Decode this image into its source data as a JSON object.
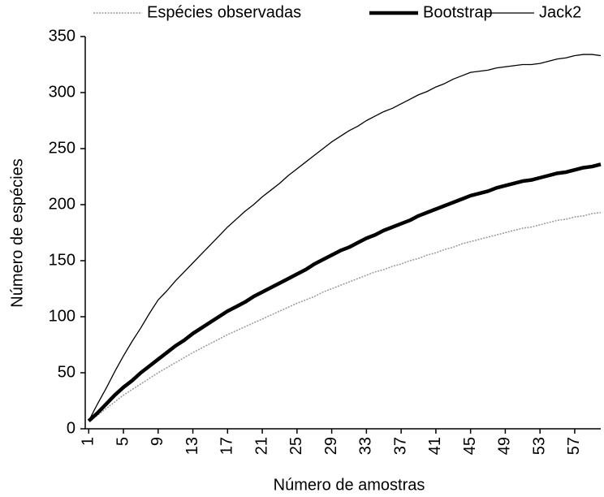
{
  "chart_data": {
    "type": "line",
    "x_label": "Número de amostras",
    "y_label": "Número de espécies",
    "x": [
      1,
      2,
      3,
      4,
      5,
      6,
      7,
      8,
      9,
      10,
      11,
      12,
      13,
      14,
      15,
      16,
      17,
      18,
      19,
      20,
      21,
      22,
      23,
      24,
      25,
      26,
      27,
      28,
      29,
      30,
      31,
      32,
      33,
      34,
      35,
      36,
      37,
      38,
      39,
      40,
      41,
      42,
      43,
      44,
      45,
      46,
      47,
      48,
      49,
      50,
      51,
      52,
      53,
      54,
      55,
      56,
      57,
      58,
      59,
      60
    ],
    "xlim": [
      0.6,
      60
    ],
    "xticks": [
      1,
      5,
      9,
      13,
      17,
      21,
      25,
      29,
      33,
      37,
      41,
      45,
      49,
      53,
      57
    ],
    "ylim": [
      0,
      350
    ],
    "yticks": [
      0,
      50,
      100,
      150,
      200,
      250,
      300,
      350
    ],
    "legend": "top",
    "series": [
      {
        "name": "Espécies observadas",
        "color": "#999999",
        "width": 1.5,
        "dash": true,
        "values": [
          7,
          12,
          18,
          24,
          30,
          35,
          40,
          45,
          50,
          54.5,
          59,
          63.5,
          68,
          72,
          76,
          80,
          84,
          87.5,
          91,
          94.5,
          98,
          101.5,
          105,
          108.5,
          112,
          115,
          118,
          122,
          125,
          128,
          131,
          134,
          137,
          140,
          142,
          145,
          147,
          150,
          152,
          155,
          157,
          160,
          162,
          165,
          167,
          169,
          171,
          173,
          175,
          177,
          179,
          180,
          182,
          184,
          186,
          187,
          189,
          190,
          192,
          193
        ]
      },
      {
        "name": "Bootstrap",
        "color": "#000000",
        "width": 4.5,
        "dash": false,
        "values": [
          7,
          14,
          22,
          30,
          37,
          43,
          50,
          56,
          62,
          68,
          74,
          79,
          85,
          90,
          95,
          100,
          105,
          109,
          113,
          118,
          122,
          126,
          130,
          134,
          138,
          142,
          147,
          151,
          155,
          159,
          162,
          166,
          170,
          173,
          177,
          180,
          183,
          186,
          190,
          193,
          196,
          199,
          202,
          205,
          208,
          210,
          212,
          215,
          217,
          219,
          221,
          222,
          224,
          226,
          228,
          229,
          231,
          233,
          234,
          236
        ]
      },
      {
        "name": "Jack2",
        "color": "#000000",
        "width": 1.3,
        "dash": false,
        "values": [
          7,
          22,
          36,
          51,
          65,
          78,
          90,
          103,
          115,
          123,
          132,
          140,
          148,
          156,
          164,
          172,
          180,
          187,
          194,
          200,
          207,
          213,
          219,
          226,
          232,
          238,
          244,
          250,
          256,
          261,
          266,
          270,
          275,
          279,
          283,
          286,
          290,
          294,
          298,
          301,
          305,
          308,
          312,
          315,
          318,
          319,
          320,
          322,
          323,
          324,
          325,
          325,
          326,
          328,
          330,
          331,
          333,
          334,
          334,
          333
        ]
      }
    ]
  }
}
